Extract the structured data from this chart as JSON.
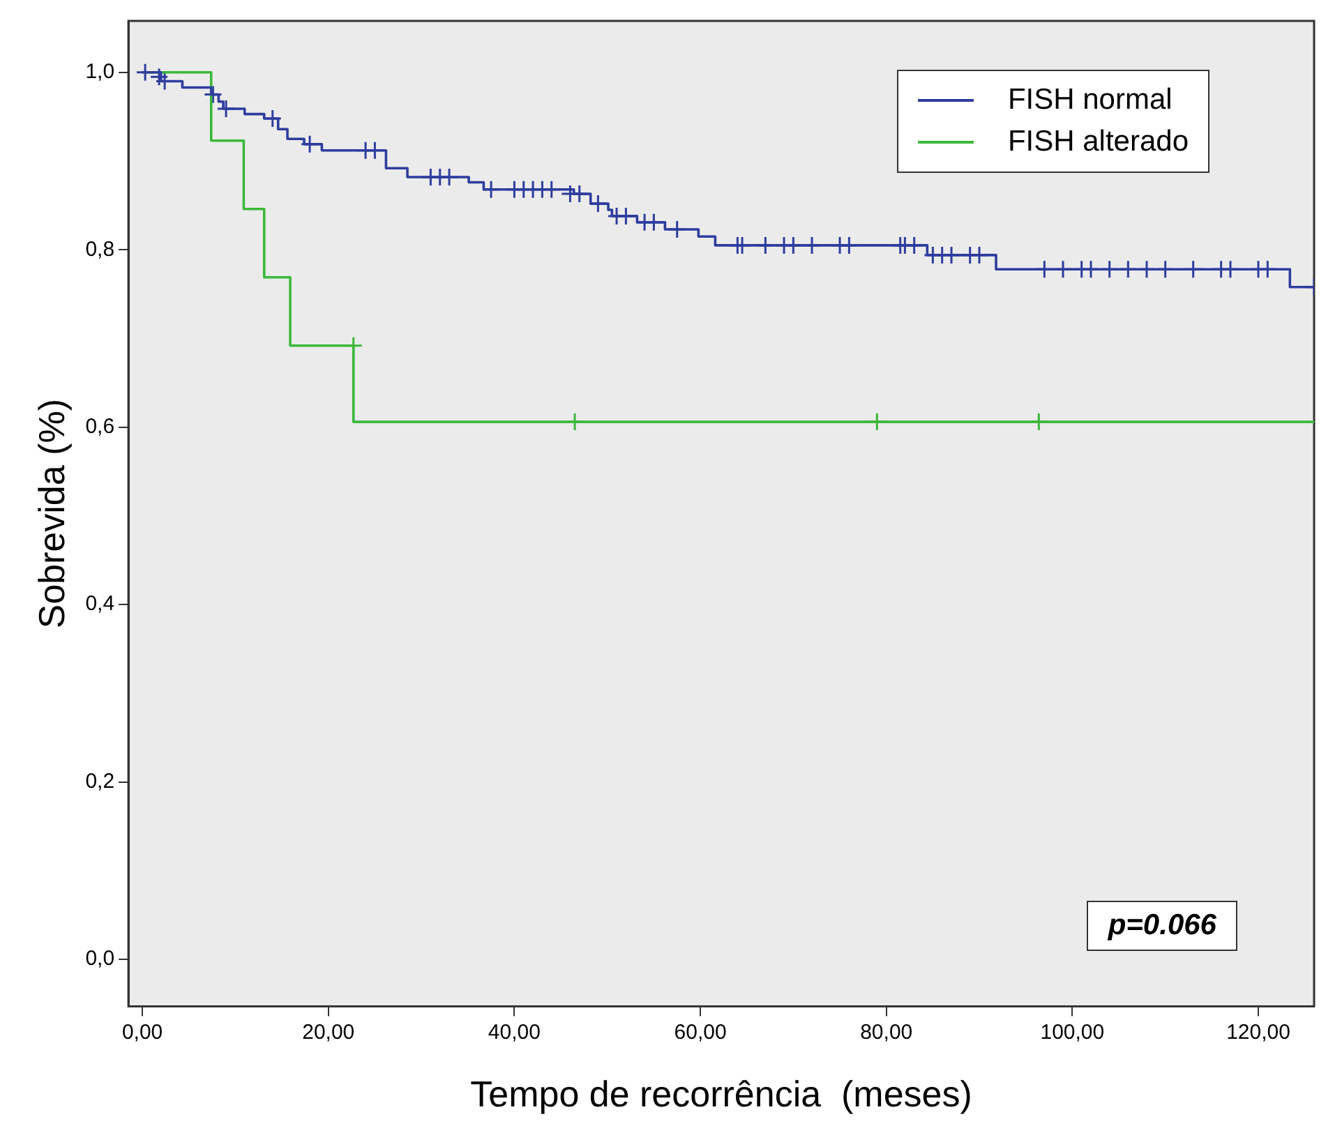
{
  "chart_data": {
    "type": "step",
    "xlabel": "Tempo de recorrência  (meses)",
    "ylabel": "Sobrevida (%)",
    "xlim": [
      -1.5,
      126
    ],
    "ylim": [
      -0.053,
      1.058
    ],
    "xticks": [
      {
        "value": 0,
        "label": "0,00"
      },
      {
        "value": 20,
        "label": "20,00"
      },
      {
        "value": 40,
        "label": "40,00"
      },
      {
        "value": 60,
        "label": "60,00"
      },
      {
        "value": 80,
        "label": "80,00"
      },
      {
        "value": 100,
        "label": "100,00"
      },
      {
        "value": 120,
        "label": "120,00"
      }
    ],
    "yticks": [
      {
        "value": 0,
        "label": "0,0"
      },
      {
        "value": 0.2,
        "label": "0,2"
      },
      {
        "value": 0.4,
        "label": "0,4"
      },
      {
        "value": 0.6,
        "label": "0,6"
      },
      {
        "value": 0.8,
        "label": "0,8"
      },
      {
        "value": 1,
        "label": "1,0"
      }
    ],
    "legend": "top right",
    "line_style": "solid",
    "marker": "none",
    "annotations": [
      "p=0.066"
    ],
    "series": [
      {
        "name": "FISH normal",
        "color": "#2e3d9e",
        "x": [
          0,
          2,
          4.3,
          7.4,
          8.2,
          8.7,
          11,
          13.1,
          14.6,
          15.6,
          17.4,
          19.3,
          26.2,
          28.5,
          35.1,
          36.7,
          46.4,
          48.2,
          50.1,
          50.5,
          53.2,
          56.2,
          59.8,
          61.6,
          84.4,
          91.8,
          123.4,
          126
        ],
        "values": [
          1,
          0.99,
          0.983,
          0.975,
          0.967,
          0.959,
          0.953,
          0.948,
          0.936,
          0.925,
          0.919,
          0.912,
          0.892,
          0.882,
          0.876,
          0.868,
          0.863,
          0.852,
          0.845,
          0.838,
          0.831,
          0.823,
          0.815,
          0.805,
          0.794,
          0.778,
          0.758,
          0.758
        ]
      },
      {
        "name": "FISH alterado",
        "color": "#3cb83c",
        "x": [
          0,
          7.4,
          10.9,
          13.1,
          15.9,
          22.7,
          126
        ],
        "values": [
          1,
          0.923,
          0.846,
          0.769,
          0.692,
          0.606,
          0.606
        ]
      },
      {
        "color": "#2e3d9e",
        "type": "scatter",
        "marker": "cross",
        "x": [
          0.3,
          1.8,
          2.4,
          7.6,
          9,
          14,
          18,
          24,
          25,
          31,
          32,
          33,
          37.5,
          40,
          41,
          42,
          43,
          44,
          46,
          47,
          49,
          51,
          52,
          54,
          55,
          57.5,
          64,
          64.5,
          67,
          69,
          70,
          72,
          75,
          76,
          81.5,
          82,
          83,
          85,
          86,
          87,
          89,
          90,
          97,
          99,
          101,
          102,
          104,
          106,
          108,
          110,
          113,
          116,
          117,
          120,
          121,
          126
        ],
        "values": [
          1,
          0.995,
          0.99,
          0.975,
          0.959,
          0.948,
          0.919,
          0.912,
          0.912,
          0.882,
          0.882,
          0.882,
          0.868,
          0.868,
          0.868,
          0.868,
          0.868,
          0.868,
          0.863,
          0.863,
          0.852,
          0.838,
          0.838,
          0.831,
          0.831,
          0.823,
          0.805,
          0.805,
          0.805,
          0.805,
          0.805,
          0.805,
          0.805,
          0.805,
          0.805,
          0.805,
          0.805,
          0.794,
          0.794,
          0.794,
          0.794,
          0.794,
          0.778,
          0.778,
          0.778,
          0.778,
          0.778,
          0.778,
          0.778,
          0.778,
          0.778,
          0.778,
          0.778,
          0.778,
          0.778,
          0.758
        ]
      },
      {
        "color": "#3cb83c",
        "type": "scatter",
        "marker": "cross",
        "x": [
          22.7,
          46.5,
          79,
          96.4
        ],
        "values": [
          0.692,
          0.606,
          0.606,
          0.606
        ]
      }
    ]
  }
}
